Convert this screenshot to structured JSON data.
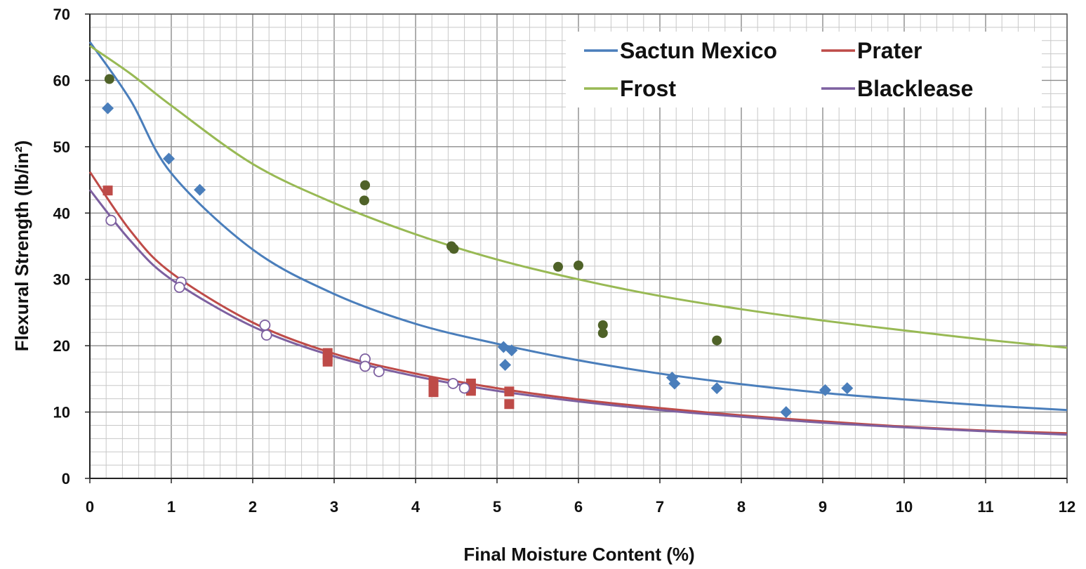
{
  "chart_data": {
    "type": "scatter",
    "title": "",
    "xlabel": "Final Moisture Content (%)",
    "ylabel": "Flexural Strength (lb/in²)",
    "xlim": [
      0,
      12
    ],
    "ylim": [
      0,
      70
    ],
    "xticks": [
      "0",
      "1",
      "2",
      "3",
      "4",
      "5",
      "6",
      "7",
      "8",
      "9",
      "10",
      "11",
      "12"
    ],
    "yticks": [
      "0",
      "10",
      "20",
      "30",
      "40",
      "50",
      "60",
      "70"
    ],
    "grid": true,
    "legend_position": "top-right",
    "series": [
      {
        "name": "Sactun Mexico",
        "color": "#4a7ebb",
        "marker": "diamond",
        "points": [
          [
            0.22,
            55.8
          ],
          [
            0.97,
            48.2
          ],
          [
            1.35,
            43.5
          ],
          [
            5.08,
            19.8
          ],
          [
            5.18,
            19.3
          ],
          [
            5.1,
            17.1
          ],
          [
            7.15,
            15.2
          ],
          [
            7.18,
            14.3
          ],
          [
            7.7,
            13.6
          ],
          [
            8.55,
            10.0
          ],
          [
            9.03,
            13.3
          ],
          [
            9.3,
            13.6
          ]
        ],
        "trend": [
          [
            0,
            65.8
          ],
          [
            0.5,
            57.0
          ],
          [
            1,
            46.0
          ],
          [
            2,
            34.5
          ],
          [
            3,
            27.8
          ],
          [
            4,
            23.3
          ],
          [
            5,
            20.3
          ],
          [
            6,
            17.8
          ],
          [
            7,
            15.8
          ],
          [
            8,
            14.2
          ],
          [
            9,
            12.9
          ],
          [
            10,
            11.9
          ],
          [
            11,
            11.0
          ],
          [
            12,
            10.3
          ]
        ]
      },
      {
        "name": "Prater",
        "color": "#be4b48",
        "marker": "square",
        "points": [
          [
            0.22,
            43.4
          ],
          [
            2.92,
            18.9
          ],
          [
            2.92,
            18.0
          ],
          [
            2.92,
            17.6
          ],
          [
            4.22,
            14.5
          ],
          [
            4.22,
            13.8
          ],
          [
            4.22,
            13.0
          ],
          [
            4.68,
            14.3
          ],
          [
            4.68,
            13.6
          ],
          [
            4.68,
            13.2
          ],
          [
            5.15,
            13.1
          ],
          [
            5.15,
            11.2
          ]
        ],
        "trend": [
          [
            0,
            46.2
          ],
          [
            0.5,
            37.3
          ],
          [
            1,
            31.0
          ],
          [
            2,
            23.5
          ],
          [
            3,
            18.8
          ],
          [
            4,
            15.8
          ],
          [
            5,
            13.6
          ],
          [
            6,
            11.9
          ],
          [
            7,
            10.6
          ],
          [
            8,
            9.5
          ],
          [
            9,
            8.6
          ],
          [
            10,
            7.8
          ],
          [
            11,
            7.2
          ],
          [
            12,
            6.8
          ]
        ]
      },
      {
        "name": "Frost",
        "color": "#98b954",
        "marker": "circle",
        "point_color": "#4f6228",
        "points": [
          [
            0.24,
            60.2
          ],
          [
            3.38,
            44.2
          ],
          [
            3.37,
            41.9
          ],
          [
            4.44,
            35.0
          ],
          [
            4.47,
            34.6
          ],
          [
            5.75,
            31.9
          ],
          [
            6.0,
            32.1
          ],
          [
            6.3,
            23.1
          ],
          [
            6.3,
            21.9
          ],
          [
            7.7,
            20.8
          ]
        ],
        "trend": [
          [
            0,
            65.2
          ],
          [
            0.5,
            61.0
          ],
          [
            1,
            56.2
          ],
          [
            2,
            47.4
          ],
          [
            3,
            41.5
          ],
          [
            4,
            36.8
          ],
          [
            5,
            33.0
          ],
          [
            6,
            30.0
          ],
          [
            7,
            27.5
          ],
          [
            8,
            25.5
          ],
          [
            9,
            23.8
          ],
          [
            10,
            22.3
          ],
          [
            11,
            20.9
          ],
          [
            12,
            19.7
          ]
        ]
      },
      {
        "name": "Blacklease",
        "color": "#7d60a0",
        "marker": "open-circle",
        "points": [
          [
            0.26,
            38.9
          ],
          [
            1.12,
            29.6
          ],
          [
            1.1,
            28.8
          ],
          [
            2.15,
            23.1
          ],
          [
            2.17,
            21.6
          ],
          [
            3.38,
            18.0
          ],
          [
            3.38,
            16.9
          ],
          [
            3.55,
            16.1
          ],
          [
            4.46,
            14.3
          ],
          [
            4.6,
            13.6
          ]
        ],
        "trend": [
          [
            0,
            43.5
          ],
          [
            0.5,
            35.8
          ],
          [
            1,
            30.0
          ],
          [
            2,
            22.9
          ],
          [
            3,
            18.4
          ],
          [
            4,
            15.4
          ],
          [
            5,
            13.2
          ],
          [
            6,
            11.6
          ],
          [
            7,
            10.3
          ],
          [
            8,
            9.3
          ],
          [
            9,
            8.4
          ],
          [
            10,
            7.7
          ],
          [
            11,
            7.1
          ],
          [
            12,
            6.6
          ]
        ]
      }
    ]
  }
}
